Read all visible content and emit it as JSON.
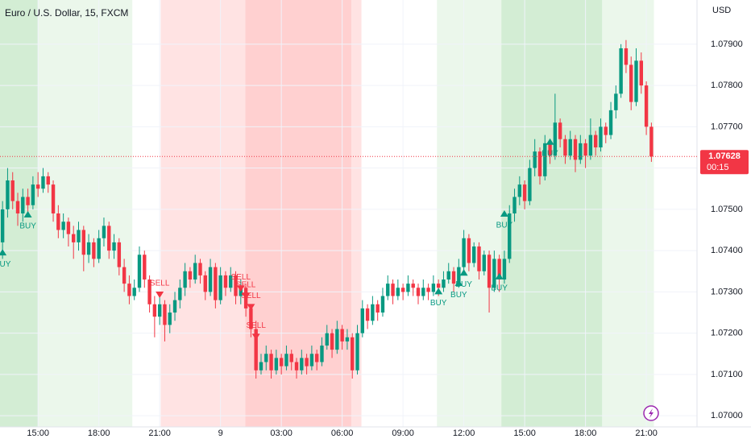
{
  "chart_data": {
    "type": "candlestick",
    "title": "Euro / U.S. Dollar, 15, FXCM",
    "currency": "USD",
    "up_color": "#089981",
    "down_color": "#f23645",
    "xlim": [
      -0.5,
      137
    ],
    "ylim": [
      1.06973,
      1.08007
    ],
    "xticks": [
      {
        "value": 7,
        "label": "15:00"
      },
      {
        "value": 19,
        "label": "18:00"
      },
      {
        "value": 31,
        "label": "21:00"
      },
      {
        "value": 43,
        "label": "9"
      },
      {
        "value": 55,
        "label": "03:00"
      },
      {
        "value": 67,
        "label": "06:00"
      },
      {
        "value": 79,
        "label": "09:00"
      },
      {
        "value": 91,
        "label": "12:00"
      },
      {
        "value": 103,
        "label": "15:00"
      },
      {
        "value": 115,
        "label": "18:00"
      },
      {
        "value": 127,
        "label": "21:00"
      }
    ],
    "yticks": [
      {
        "value": 1.07,
        "label": "1.07000"
      },
      {
        "value": 1.071,
        "label": "1.07100"
      },
      {
        "value": 1.072,
        "label": "1.07200"
      },
      {
        "value": 1.073,
        "label": "1.07300"
      },
      {
        "value": 1.074,
        "label": "1.07400"
      },
      {
        "value": 1.075,
        "label": "1.07500"
      },
      {
        "value": 1.076,
        "label": "1.07600"
      },
      {
        "value": 1.077,
        "label": "1.07700"
      },
      {
        "value": 1.078,
        "label": "1.07800"
      },
      {
        "value": 1.079,
        "label": "1.07900"
      }
    ],
    "grid": true,
    "zones": [
      {
        "start": -0.5,
        "end": 7,
        "color": "#d3edd4"
      },
      {
        "start": 7,
        "end": 25.6,
        "color": "#ebf7eb"
      },
      {
        "start": 31.2,
        "end": 47.9,
        "color": "#ffe3e3"
      },
      {
        "start": 47.9,
        "end": 68.8,
        "color": "#ffd0d0"
      },
      {
        "start": 68.8,
        "end": 70.8,
        "color": "#ffe3e3"
      },
      {
        "start": 85.7,
        "end": 98.4,
        "color": "#ebf7eb"
      },
      {
        "start": 98.4,
        "end": 118.3,
        "color": "#d3edd4"
      },
      {
        "start": 118.3,
        "end": 128.5,
        "color": "#ebf7eb"
      }
    ],
    "candles": [
      [
        1.0742,
        1.0752,
        1.0738,
        1.075
      ],
      [
        1.075,
        1.076,
        1.0748,
        1.0757
      ],
      [
        1.0757,
        1.0759,
        1.075,
        1.0752
      ],
      [
        1.0752,
        1.0754,
        1.0746,
        1.0749
      ],
      [
        1.0749,
        1.0755,
        1.0747,
        1.0753
      ],
      [
        1.0753,
        1.0755,
        1.0749,
        1.0751
      ],
      [
        1.0751,
        1.0758,
        1.075,
        1.0756
      ],
      [
        1.0756,
        1.0759,
        1.0753,
        1.0755
      ],
      [
        1.0755,
        1.076,
        1.0754,
        1.0758
      ],
      [
        1.0758,
        1.0759,
        1.0754,
        1.0756
      ],
      [
        1.0756,
        1.0757,
        1.0747,
        1.0749
      ],
      [
        1.0749,
        1.0751,
        1.0743,
        1.0745
      ],
      [
        1.0745,
        1.0749,
        1.0743,
        1.0747
      ],
      [
        1.0747,
        1.0748,
        1.0741,
        1.0744
      ],
      [
        1.0744,
        1.0746,
        1.0738,
        1.0742
      ],
      [
        1.0742,
        1.0747,
        1.074,
        1.0745
      ],
      [
        1.0745,
        1.0746,
        1.0735,
        1.0739
      ],
      [
        1.0739,
        1.0744,
        1.0737,
        1.0742
      ],
      [
        1.0742,
        1.0743,
        1.0736,
        1.0738
      ],
      [
        1.0738,
        1.0745,
        1.0737,
        1.0743
      ],
      [
        1.0743,
        1.0748,
        1.0741,
        1.0746
      ],
      [
        1.0746,
        1.0747,
        1.0738,
        1.074
      ],
      [
        1.074,
        1.0744,
        1.0738,
        1.0742
      ],
      [
        1.0742,
        1.0743,
        1.0734,
        1.0736
      ],
      [
        1.0736,
        1.0738,
        1.073,
        1.0732
      ],
      [
        1.0732,
        1.0734,
        1.0727,
        1.0729
      ],
      [
        1.0729,
        1.0733,
        1.0728,
        1.0731
      ],
      [
        1.0731,
        1.0741,
        1.073,
        1.0739
      ],
      [
        1.0739,
        1.074,
        1.0731,
        1.0733
      ],
      [
        1.0733,
        1.0734,
        1.0725,
        1.0727
      ],
      [
        1.0727,
        1.0729,
        1.0719,
        1.0724
      ],
      [
        1.0724,
        1.0729,
        1.0722,
        1.0727
      ],
      [
        1.0727,
        1.0728,
        1.0718,
        1.0722
      ],
      [
        1.0722,
        1.0727,
        1.072,
        1.0725
      ],
      [
        1.0725,
        1.073,
        1.0723,
        1.0728
      ],
      [
        1.0728,
        1.0733,
        1.0726,
        1.0731
      ],
      [
        1.0731,
        1.0737,
        1.0729,
        1.0735
      ],
      [
        1.0735,
        1.0736,
        1.0731,
        1.0733
      ],
      [
        1.0733,
        1.0739,
        1.0732,
        1.0737
      ],
      [
        1.0737,
        1.0738,
        1.0732,
        1.0734
      ],
      [
        1.0734,
        1.0735,
        1.0728,
        1.073
      ],
      [
        1.073,
        1.0738,
        1.0729,
        1.0736
      ],
      [
        1.0736,
        1.0737,
        1.0726,
        1.0728
      ],
      [
        1.0728,
        1.0736,
        1.0727,
        1.0734
      ],
      [
        1.0734,
        1.0735,
        1.0729,
        1.0731
      ],
      [
        1.0731,
        1.0736,
        1.073,
        1.0734
      ],
      [
        1.0734,
        1.0735,
        1.0727,
        1.0729
      ],
      [
        1.0729,
        1.0733,
        1.0727,
        1.0731
      ],
      [
        1.0731,
        1.0732,
        1.0724,
        1.0726
      ],
      [
        1.0726,
        1.0727,
        1.0719,
        1.0721
      ],
      [
        1.0721,
        1.0723,
        1.0709,
        1.0711
      ],
      [
        1.0711,
        1.0715,
        1.071,
        1.0713
      ],
      [
        1.0713,
        1.0717,
        1.0711,
        1.0715
      ],
      [
        1.0715,
        1.0716,
        1.0709,
        1.0711
      ],
      [
        1.0711,
        1.0716,
        1.071,
        1.0714
      ],
      [
        1.0714,
        1.0715,
        1.071,
        1.0712
      ],
      [
        1.0712,
        1.0717,
        1.0711,
        1.0715
      ],
      [
        1.0715,
        1.0716,
        1.0711,
        1.0713
      ],
      [
        1.0713,
        1.0714,
        1.0709,
        1.0711
      ],
      [
        1.0711,
        1.0716,
        1.071,
        1.0714
      ],
      [
        1.0714,
        1.0715,
        1.071,
        1.0712
      ],
      [
        1.0712,
        1.0717,
        1.0711,
        1.0715
      ],
      [
        1.0715,
        1.0716,
        1.0711,
        1.0713
      ],
      [
        1.0713,
        1.0719,
        1.0712,
        1.0717
      ],
      [
        1.0717,
        1.0722,
        1.0716,
        1.072
      ],
      [
        1.072,
        1.0721,
        1.0714,
        1.0716
      ],
      [
        1.0716,
        1.0723,
        1.0715,
        1.0721
      ],
      [
        1.0721,
        1.0722,
        1.0716,
        1.0718
      ],
      [
        1.0718,
        1.0721,
        1.0716,
        1.0719
      ],
      [
        1.0719,
        1.072,
        1.0709,
        1.0711
      ],
      [
        1.0711,
        1.0722,
        1.071,
        1.072
      ],
      [
        1.072,
        1.0728,
        1.0719,
        1.0726
      ],
      [
        1.0726,
        1.0727,
        1.0721,
        1.0723
      ],
      [
        1.0723,
        1.0729,
        1.0722,
        1.0727
      ],
      [
        1.0727,
        1.0728,
        1.0723,
        1.0725
      ],
      [
        1.0725,
        1.0731,
        1.0724,
        1.0729
      ],
      [
        1.0729,
        1.0734,
        1.0728,
        1.0732
      ],
      [
        1.0732,
        1.0733,
        1.0727,
        1.0729
      ],
      [
        1.0729,
        1.0733,
        1.0728,
        1.0731
      ],
      [
        1.0731,
        1.0732,
        1.0728,
        1.073
      ],
      [
        1.073,
        1.0734,
        1.0729,
        1.0732
      ],
      [
        1.0732,
        1.0733,
        1.0729,
        1.0731
      ],
      [
        1.0731,
        1.0732,
        1.0727,
        1.0729
      ],
      [
        1.0729,
        1.0733,
        1.0728,
        1.0731
      ],
      [
        1.0731,
        1.0732,
        1.0728,
        1.073
      ],
      [
        1.073,
        1.0734,
        1.0729,
        1.0732
      ],
      [
        1.0732,
        1.0733,
        1.0729,
        1.0731
      ],
      [
        1.0731,
        1.0735,
        1.073,
        1.0733
      ],
      [
        1.0733,
        1.0737,
        1.0732,
        1.0735
      ],
      [
        1.0735,
        1.0736,
        1.073,
        1.0732
      ],
      [
        1.0732,
        1.0738,
        1.0731,
        1.0736
      ],
      [
        1.0736,
        1.0745,
        1.0735,
        1.0743
      ],
      [
        1.0743,
        1.0744,
        1.0735,
        1.0737
      ],
      [
        1.0737,
        1.0742,
        1.0736,
        1.0741
      ],
      [
        1.0741,
        1.0742,
        1.0733,
        1.0735
      ],
      [
        1.0735,
        1.074,
        1.0734,
        1.0739
      ],
      [
        1.0739,
        1.074,
        1.0725,
        1.0731
      ],
      [
        1.0731,
        1.074,
        1.073,
        1.0738
      ],
      [
        1.0738,
        1.0739,
        1.073,
        1.0733
      ],
      [
        1.0733,
        1.074,
        1.0732,
        1.0738
      ],
      [
        1.0738,
        1.0751,
        1.0737,
        1.0749
      ],
      [
        1.0749,
        1.0755,
        1.0747,
        1.0753
      ],
      [
        1.0753,
        1.0758,
        1.0751,
        1.0756
      ],
      [
        1.0756,
        1.0757,
        1.075,
        1.0752
      ],
      [
        1.0752,
        1.0762,
        1.0751,
        1.076
      ],
      [
        1.076,
        1.0767,
        1.0758,
        1.0764
      ],
      [
        1.0764,
        1.0765,
        1.0756,
        1.0758
      ],
      [
        1.0758,
        1.0768,
        1.0757,
        1.0766
      ],
      [
        1.0766,
        1.0767,
        1.0761,
        1.0763
      ],
      [
        1.0763,
        1.0778,
        1.0762,
        1.0771
      ],
      [
        1.0771,
        1.0772,
        1.0765,
        1.0767
      ],
      [
        1.0767,
        1.0768,
        1.0761,
        1.0763
      ],
      [
        1.0763,
        1.0769,
        1.0762,
        1.0767
      ],
      [
        1.0767,
        1.0768,
        1.0759,
        1.0762
      ],
      [
        1.0762,
        1.0768,
        1.0761,
        1.0766
      ],
      [
        1.0766,
        1.0767,
        1.076,
        1.0763
      ],
      [
        1.0763,
        1.0772,
        1.0762,
        1.0768
      ],
      [
        1.0768,
        1.0769,
        1.0763,
        1.0765
      ],
      [
        1.0765,
        1.0772,
        1.0764,
        1.077
      ],
      [
        1.077,
        1.0771,
        1.0766,
        1.0768
      ],
      [
        1.0768,
        1.0776,
        1.0767,
        1.0774
      ],
      [
        1.0774,
        1.078,
        1.0772,
        1.0778
      ],
      [
        1.0778,
        1.079,
        1.0777,
        1.0789
      ],
      [
        1.0789,
        1.0791,
        1.0783,
        1.0785
      ],
      [
        1.0785,
        1.0787,
        1.0774,
        1.0776
      ],
      [
        1.0776,
        1.0789,
        1.0775,
        1.0786
      ],
      [
        1.0786,
        1.0788,
        1.0778,
        1.078
      ],
      [
        1.078,
        1.0781,
        1.0768,
        1.077
      ],
      [
        1.077,
        1.0771,
        1.07615,
        1.07628
      ]
    ],
    "signals": [
      {
        "index": 0,
        "price": 1.07396,
        "label": "BUY"
      },
      {
        "index": 5,
        "price": 1.07488,
        "label": "BUY"
      },
      {
        "index": 31,
        "price": 1.07293,
        "label": "SELL"
      },
      {
        "index": 47,
        "price": 1.07308,
        "label": "SELL"
      },
      {
        "index": 48,
        "price": 1.07289,
        "label": "SELL"
      },
      {
        "index": 49,
        "price": 1.07263,
        "label": "SELL"
      },
      {
        "index": 50,
        "price": 1.07191,
        "label": "SELL"
      },
      {
        "index": 86,
        "price": 1.07302,
        "label": "BUY"
      },
      {
        "index": 90,
        "price": 1.07322,
        "label": "BUY"
      },
      {
        "index": 91,
        "price": 1.07347,
        "label": "BUY"
      },
      {
        "index": 98,
        "price": 1.07338,
        "label": "BUY"
      },
      {
        "index": 99,
        "price": 1.0749,
        "label": "BUY"
      },
      {
        "index": 108,
        "price": 1.07664,
        "label": "BUY"
      }
    ],
    "last_price": 1.07628,
    "countdown": "00:15"
  }
}
